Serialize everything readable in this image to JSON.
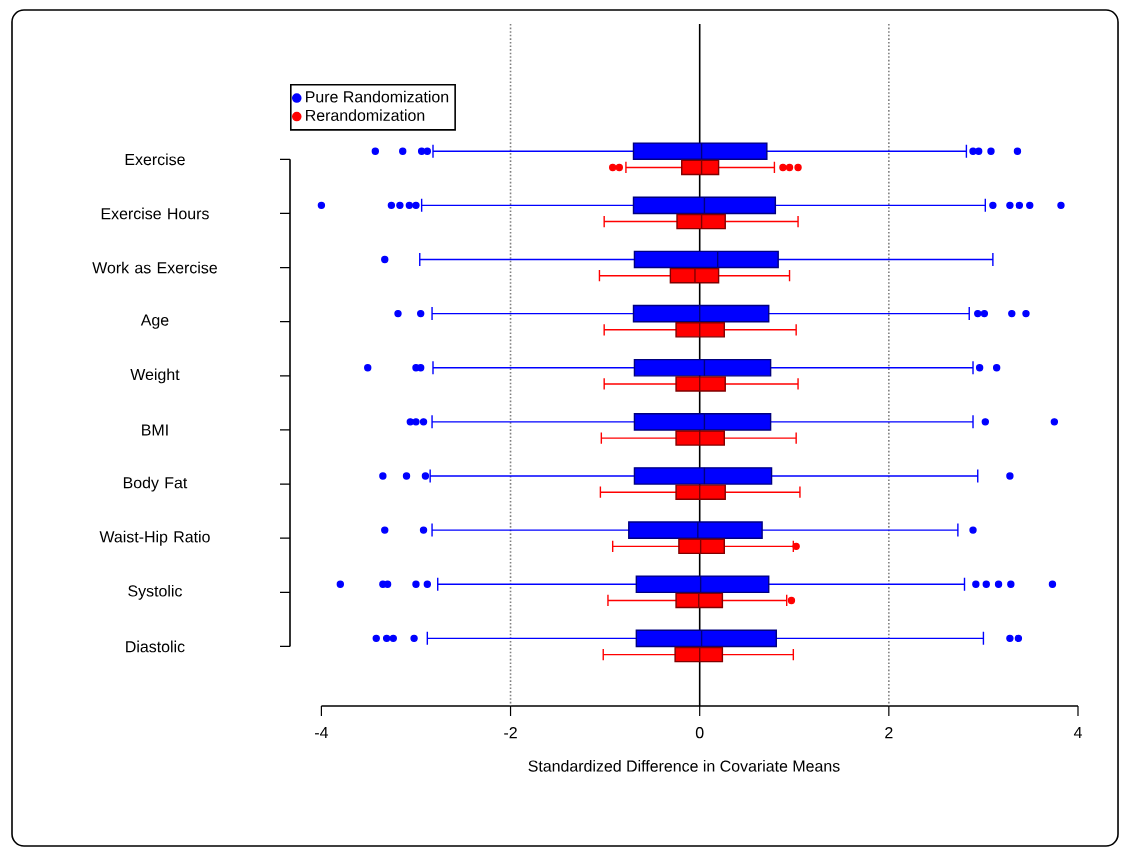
{
  "chart_data": {
    "type": "box",
    "orientation": "horizontal",
    "xlabel": "Standardized Difference in Covariate Means",
    "categories": [
      "Exercise",
      "Exercise Hours",
      "Work as Exercise",
      "Age",
      "Weight",
      "BMI",
      "Body Fat",
      "Waist-Hip Ratio",
      "Systolic",
      "Diastolic"
    ],
    "xlim": [
      -4,
      4
    ],
    "xticks": [
      -4,
      -2,
      0,
      2,
      4
    ],
    "legend": "top left",
    "marker": "circle",
    "ref_lines": [
      {
        "axis": "x",
        "value": -2,
        "line_style": "dotted",
        "color": "#808080"
      },
      {
        "axis": "x",
        "value": 0,
        "line_style": "solid",
        "color": "#000000"
      },
      {
        "axis": "x",
        "value": 2,
        "line_style": "dotted",
        "color": "#808080"
      }
    ],
    "series": [
      {
        "name": "Pure Randomization",
        "color": "#0000ff",
        "boxes": [
          {
            "low": -2.82,
            "q1": -0.7,
            "median": 0.02,
            "q3": 0.71,
            "high": 2.82,
            "outliers": [
              -3.43,
              -3.14,
              -2.94,
              -2.88,
              2.89,
              2.95,
              3.08,
              3.36
            ]
          },
          {
            "low": -2.94,
            "q1": -0.7,
            "median": 0.05,
            "q3": 0.8,
            "high": 3.02,
            "outliers": [
              -4.0,
              -3.26,
              -3.17,
              -3.07,
              -3.0,
              3.1,
              3.28,
              3.38,
              3.49,
              3.82
            ]
          },
          {
            "low": -2.96,
            "q1": -0.69,
            "median": 0.19,
            "q3": 0.83,
            "high": 3.1,
            "outliers": [
              -3.33
            ]
          },
          {
            "low": -2.83,
            "q1": -0.7,
            "median": 0.0,
            "q3": 0.73,
            "high": 2.85,
            "outliers": [
              -3.19,
              -2.95,
              2.94,
              3.01,
              3.3,
              3.45
            ]
          },
          {
            "low": -2.82,
            "q1": -0.69,
            "median": 0.05,
            "q3": 0.75,
            "high": 2.89,
            "outliers": [
              -3.51,
              -3.0,
              -2.95,
              2.96,
              3.14
            ]
          },
          {
            "low": -2.83,
            "q1": -0.69,
            "median": 0.05,
            "q3": 0.75,
            "high": 2.89,
            "outliers": [
              -3.06,
              -3.0,
              -2.92,
              3.02,
              3.75
            ]
          },
          {
            "low": -2.85,
            "q1": -0.69,
            "median": 0.05,
            "q3": 0.76,
            "high": 2.94,
            "outliers": [
              -3.35,
              -3.1,
              -2.9,
              3.28
            ]
          },
          {
            "low": -2.83,
            "q1": -0.75,
            "median": -0.02,
            "q3": 0.66,
            "high": 2.73,
            "outliers": [
              -3.33,
              -2.92,
              2.89
            ]
          },
          {
            "low": -2.77,
            "q1": -0.67,
            "median": 0.01,
            "q3": 0.73,
            "high": 2.8,
            "outliers": [
              -3.8,
              -3.35,
              -3.3,
              -3.0,
              -2.88,
              2.92,
              3.03,
              3.16,
              3.29,
              3.73
            ]
          },
          {
            "low": -2.88,
            "q1": -0.67,
            "median": 0.02,
            "q3": 0.81,
            "high": 3.0,
            "outliers": [
              -3.42,
              -3.31,
              -3.24,
              -3.02,
              3.28,
              3.37
            ]
          }
        ]
      },
      {
        "name": "Rerandomization",
        "color": "#ff0000",
        "boxes": [
          {
            "low": -0.78,
            "q1": -0.19,
            "median": 0.02,
            "q3": 0.2,
            "high": 0.79,
            "outliers": [
              -0.92,
              -0.85,
              0.88,
              0.95,
              1.04
            ]
          },
          {
            "low": -1.01,
            "q1": -0.24,
            "median": 0.02,
            "q3": 0.27,
            "high": 1.04
          },
          {
            "low": -1.06,
            "q1": -0.31,
            "median": -0.05,
            "q3": 0.2,
            "high": 0.95
          },
          {
            "low": -1.01,
            "q1": -0.25,
            "median": 0.0,
            "q3": 0.26,
            "high": 1.02
          },
          {
            "low": -1.01,
            "q1": -0.25,
            "median": 0.0,
            "q3": 0.27,
            "high": 1.04
          },
          {
            "low": -1.04,
            "q1": -0.25,
            "median": 0.0,
            "q3": 0.26,
            "high": 1.02
          },
          {
            "low": -1.05,
            "q1": -0.25,
            "median": 0.0,
            "q3": 0.27,
            "high": 1.06
          },
          {
            "low": -0.92,
            "q1": -0.22,
            "median": 0.01,
            "q3": 0.26,
            "high": 0.99,
            "outliers": [
              1.02
            ]
          },
          {
            "low": -0.97,
            "q1": -0.25,
            "median": -0.01,
            "q3": 0.24,
            "high": 0.92,
            "outliers": [
              0.97
            ]
          },
          {
            "low": -1.02,
            "q1": -0.26,
            "median": 0.0,
            "q3": 0.24,
            "high": 0.99
          }
        ]
      }
    ]
  }
}
